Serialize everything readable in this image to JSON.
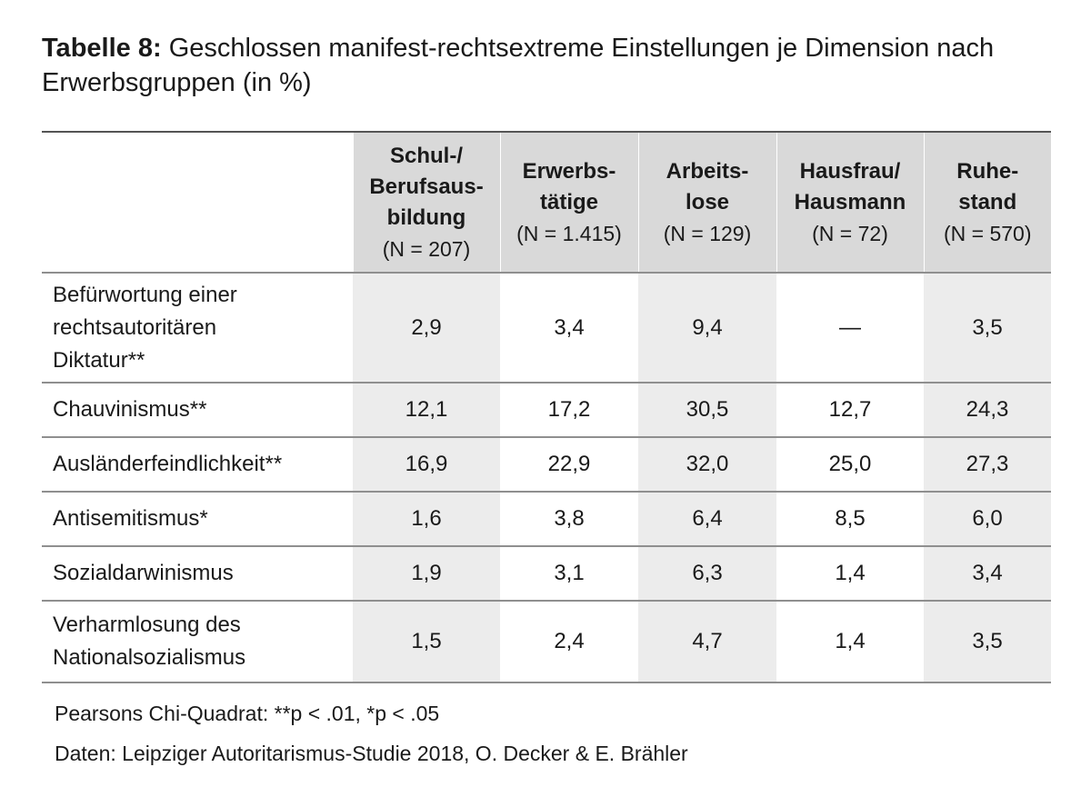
{
  "title": {
    "label": "Tabelle 8:",
    "text": "Geschlossen manifest-rechtsextreme Einstellungen je Dimension nach Erwerbsgruppen (in %)"
  },
  "table": {
    "columns": [
      {
        "label_line1": "Schul-/",
        "label_line2": "Berufsaus-",
        "label_line3": "bildung",
        "n": "(N = 207)"
      },
      {
        "label_line1": "",
        "label_line2": "Erwerbs-",
        "label_line3": "tätige",
        "n": "(N = 1.415)"
      },
      {
        "label_line1": "",
        "label_line2": "Arbeits-",
        "label_line3": "lose",
        "n": "(N = 129)"
      },
      {
        "label_line1": "",
        "label_line2": "Hausfrau/",
        "label_line3": "Hausmann",
        "n": "(N = 72)"
      },
      {
        "label_line1": "",
        "label_line2": "Ruhe-",
        "label_line3": "stand",
        "n": "(N = 570)"
      }
    ],
    "rows": [
      {
        "label_line1": "Befürwortung einer",
        "label_line2": "rechtsautoritären",
        "label_line3": "Diktatur**",
        "values": [
          "2,9",
          "3,4",
          "9,4",
          "—",
          "3,5"
        ]
      },
      {
        "label_line1": "Chauvinismus**",
        "label_line2": "",
        "label_line3": "",
        "values": [
          "12,1",
          "17,2",
          "30,5",
          "12,7",
          "24,3"
        ]
      },
      {
        "label_line1": "Ausländerfeindlichkeit**",
        "label_line2": "",
        "label_line3": "",
        "values": [
          "16,9",
          "22,9",
          "32,0",
          "25,0",
          "27,3"
        ]
      },
      {
        "label_line1": "Antisemitismus*",
        "label_line2": "",
        "label_line3": "",
        "values": [
          "1,6",
          "3,8",
          "6,4",
          "8,5",
          "6,0"
        ]
      },
      {
        "label_line1": "Sozialdarwinismus",
        "label_line2": "",
        "label_line3": "",
        "values": [
          "1,9",
          "3,1",
          "6,3",
          "1,4",
          "3,4"
        ]
      },
      {
        "label_line1": "Verharmlosung des",
        "label_line2": "Nationalsozialismus",
        "label_line3": "",
        "values": [
          "1,5",
          "2,4",
          "4,7",
          "1,4",
          "3,5"
        ]
      }
    ]
  },
  "notes": {
    "significance": "Pearsons Chi-Quadrat: **p < .01, *p < .05",
    "source": "Daten: Leipziger Autoritarismus-Studie 2018, O. Decker & E. Brähler"
  },
  "colors": {
    "header_fill": "#d9d9d9",
    "shaded_column_fill": "#ececec",
    "rule": "#8f8f8f"
  }
}
